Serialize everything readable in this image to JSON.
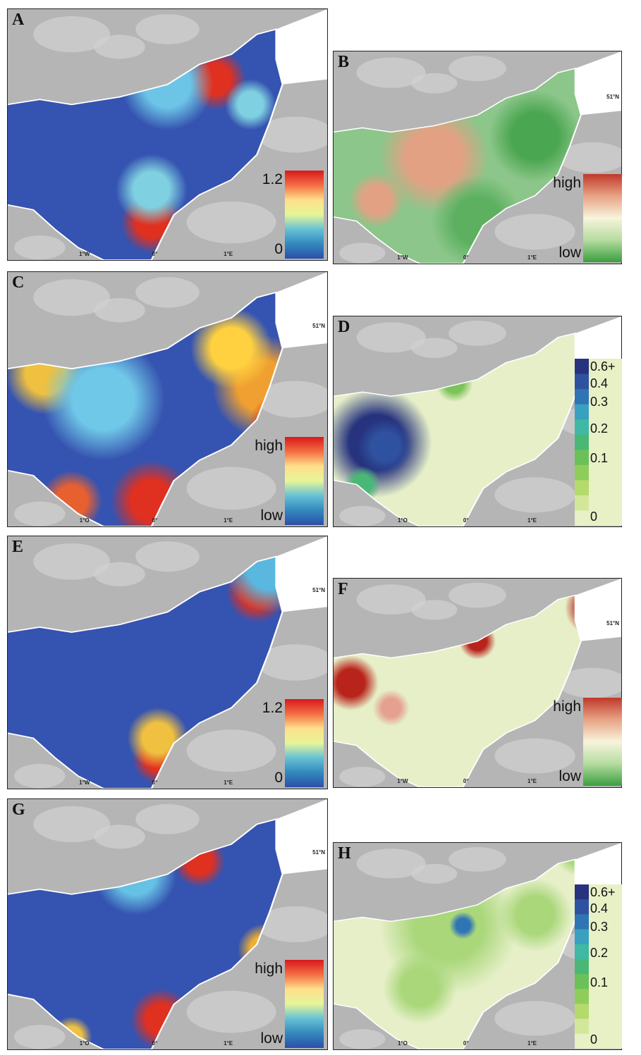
{
  "panels": [
    {
      "label": "A",
      "lon_labels": [
        "1°W",
        "0°",
        "1°E"
      ],
      "legend": {
        "kind": "continuous",
        "labels": [
          "1.2",
          "0"
        ],
        "colors": [
          "#d7191c",
          "#f46d43",
          "#fee08b",
          "#e6f598",
          "#66c2d5",
          "#3288bd",
          "#2c4fa8"
        ]
      }
    },
    {
      "label": "B",
      "lon_labels": [
        "1°W",
        "0°",
        "1°E"
      ],
      "lat_label": "51°N",
      "legend": {
        "kind": "continuous",
        "labels": [
          "high",
          "low"
        ],
        "colors": [
          "#c0392b",
          "#e8a385",
          "#f7f4dc",
          "#b5dca0",
          "#3a9e3f"
        ]
      }
    },
    {
      "label": "C",
      "lon_labels": [
        "1°O",
        "0°",
        "1°E"
      ],
      "lat_label": "51°N",
      "legend": {
        "kind": "continuous",
        "labels": [
          "high",
          "low"
        ],
        "colors": [
          "#d7191c",
          "#f46d43",
          "#fee08b",
          "#e6f598",
          "#66c2d5",
          "#3288bd",
          "#2c4fa8"
        ]
      }
    },
    {
      "label": "D",
      "lon_labels": [
        "1°O",
        "0°",
        "1°E"
      ],
      "legend": {
        "kind": "discrete",
        "labels": [
          "0.6+",
          "0.4",
          "0.3",
          "0.2",
          "0.1",
          "0"
        ],
        "colors": [
          "#27337e",
          "#2f52a0",
          "#2f74b5",
          "#3aa0bf",
          "#3fb8a4",
          "#49b877",
          "#6cc05a",
          "#8fcd5a",
          "#b5da6c",
          "#d3e79a",
          "#e8f0c6"
        ]
      }
    },
    {
      "label": "E",
      "lon_labels": [
        "1°W",
        "0°",
        "1°E"
      ],
      "lat_label": "51°N",
      "legend": {
        "kind": "continuous",
        "labels": [
          "1.2",
          "0"
        ],
        "colors": [
          "#d7191c",
          "#f46d43",
          "#fee08b",
          "#e6f598",
          "#66c2d5",
          "#3288bd",
          "#2c4fa8"
        ]
      }
    },
    {
      "label": "F",
      "lon_labels": [
        "1°W",
        "0°",
        "1°E"
      ],
      "lat_label": "51°N",
      "legend": {
        "kind": "continuous",
        "labels": [
          "high",
          "low"
        ],
        "colors": [
          "#c0392b",
          "#e8a385",
          "#f7f4dc",
          "#b5dca0",
          "#3a9e3f"
        ]
      }
    },
    {
      "label": "G",
      "lon_labels": [
        "1°O",
        "0°",
        "1°E"
      ],
      "lat_label": "51°N",
      "legend": {
        "kind": "continuous",
        "labels": [
          "high",
          "low"
        ],
        "colors": [
          "#d7191c",
          "#f46d43",
          "#fee08b",
          "#e6f598",
          "#66c2d5",
          "#3288bd",
          "#2c4fa8"
        ]
      }
    },
    {
      "label": "H",
      "lon_labels": [
        "1°O",
        "0°",
        "1°E"
      ],
      "legend": {
        "kind": "discrete",
        "labels": [
          "0.6+",
          "0.4",
          "0.3",
          "0.2",
          "0.1",
          "0"
        ],
        "colors": [
          "#27337e",
          "#2f52a0",
          "#2f74b5",
          "#3aa0bf",
          "#3fb8a4",
          "#49b877",
          "#6cc05a",
          "#8fcd5a",
          "#b5da6c",
          "#d3e79a",
          "#e8f0c6"
        ]
      }
    }
  ]
}
